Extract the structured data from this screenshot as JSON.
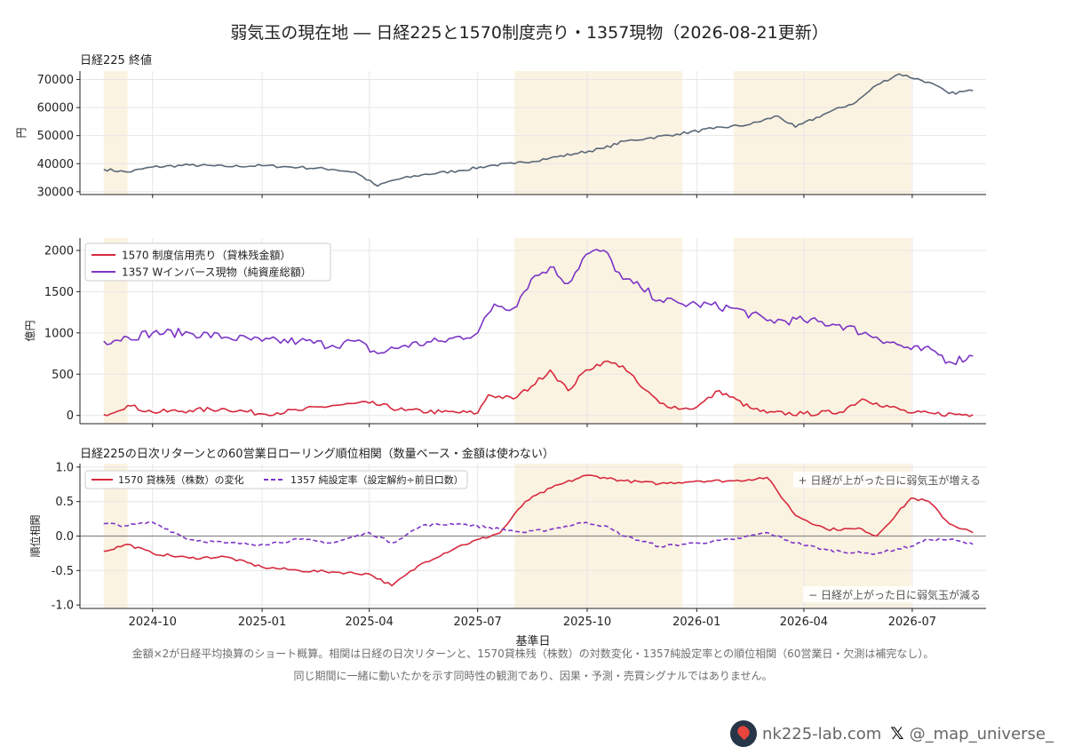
{
  "title": "弱気玉の現在地 ― 日経225と1570制度売り・1357現物（2026-08-21更新）",
  "notes": [
    "金額×2が日経平均換算のショート概算。相関は日経の日次リターンと、1570貸株残（株数）の対数変化・1357純設定率との順位相関（60営業日・欠測は補完なし）。",
    "同じ期間に一緒に動いたかを示す同時性の観測であり、因果・予測・売買シグナルではありません。"
  ],
  "brand": {
    "site": "nk225-lab.com",
    "handle": "@_map_universe_",
    "x_icon": "x-logo-icon",
    "logo_icon": "map-pin-logo-icon"
  },
  "colors": {
    "nikkei": "#5a6878",
    "short1570": "#d62a3e",
    "phys1357": "#7b34c6",
    "shade": "#fbf3e1"
  },
  "chart_data": [
    {
      "type": "line",
      "subtitle": "日経225 終値",
      "ylabel": "円",
      "ylim": [
        29000,
        73000
      ],
      "yticks": [
        30000,
        40000,
        50000,
        60000,
        70000
      ],
      "x_range": [
        "2024-08-01",
        "2026-09-01"
      ],
      "shaded_periods": [
        [
          "2024-08-21",
          "2024-09-10"
        ],
        [
          "2025-08-01",
          "2025-12-20"
        ],
        [
          "2026-02-01",
          "2026-06-30"
        ]
      ],
      "series": [
        {
          "name": "",
          "color": "#5a6878",
          "x": [
            "2024-08-21",
            "2024-09-10",
            "2024-10-01",
            "2024-11-01",
            "2024-12-01",
            "2025-01-01",
            "2025-02-01",
            "2025-03-01",
            "2025-03-20",
            "2025-04-08",
            "2025-04-20",
            "2025-05-15",
            "2025-06-15",
            "2025-07-15",
            "2025-08-01",
            "2025-08-31",
            "2025-09-20",
            "2025-10-15",
            "2025-11-01",
            "2025-11-20",
            "2025-12-15",
            "2026-01-15",
            "2026-02-15",
            "2026-03-10",
            "2026-03-25",
            "2026-04-20",
            "2026-05-15",
            "2026-06-01",
            "2026-06-20",
            "2026-07-15",
            "2026-08-01",
            "2026-08-21"
          ],
          "values": [
            38000,
            37000,
            38800,
            39500,
            39000,
            39300,
            38700,
            38000,
            37000,
            32000,
            34000,
            36000,
            37500,
            39500,
            40000,
            42000,
            43500,
            45500,
            48000,
            49000,
            50500,
            52500,
            54000,
            57000,
            53000,
            58000,
            62000,
            68000,
            72000,
            69000,
            65000,
            66000
          ]
        }
      ],
      "xticks": [
        "2024-10",
        "2025-01",
        "2025-04",
        "2025-07",
        "2025-10",
        "2026-01",
        "2026-04",
        "2026-07"
      ]
    },
    {
      "type": "line",
      "ylabel": "億円",
      "ylim": [
        -100,
        2150
      ],
      "yticks": [
        0,
        500,
        1000,
        1500,
        2000
      ],
      "legend_position": "upper-left",
      "series": [
        {
          "name": "1570 制度信用売り（貸株残金額）",
          "color": "#d62a3e",
          "x": [
            "2024-08-21",
            "2024-09-10",
            "2024-10-01",
            "2024-11-01",
            "2024-12-01",
            "2025-01-01",
            "2025-02-01",
            "2025-03-01",
            "2025-04-01",
            "2025-05-01",
            "2025-06-01",
            "2025-07-01",
            "2025-07-10",
            "2025-07-31",
            "2025-08-15",
            "2025-08-31",
            "2025-09-15",
            "2025-09-30",
            "2025-10-15",
            "2025-10-31",
            "2025-11-15",
            "2025-12-01",
            "2025-12-20",
            "2026-01-01",
            "2026-01-20",
            "2026-02-15",
            "2026-03-01",
            "2026-04-01",
            "2026-05-01",
            "2026-05-20",
            "2026-06-01",
            "2026-06-30",
            "2026-07-20",
            "2026-08-21"
          ],
          "values": [
            10,
            120,
            40,
            60,
            80,
            20,
            60,
            120,
            150,
            60,
            40,
            30,
            250,
            200,
            350,
            550,
            300,
            550,
            650,
            600,
            350,
            150,
            80,
            100,
            300,
            90,
            30,
            20,
            40,
            200,
            150,
            30,
            20,
            10
          ]
        },
        {
          "name": "1357 Wインバース現物（純資産総額）",
          "color": "#7b34c6",
          "x": [
            "2024-08-21",
            "2024-09-10",
            "2024-10-01",
            "2024-11-01",
            "2024-12-01",
            "2025-01-01",
            "2025-02-01",
            "2025-03-01",
            "2025-03-20",
            "2025-04-08",
            "2025-05-01",
            "2025-06-01",
            "2025-07-01",
            "2025-07-15",
            "2025-07-31",
            "2025-08-15",
            "2025-08-31",
            "2025-09-15",
            "2025-09-30",
            "2025-10-15",
            "2025-10-31",
            "2025-11-15",
            "2025-12-01",
            "2025-12-20",
            "2026-01-01",
            "2026-02-01",
            "2026-03-01",
            "2026-04-01",
            "2026-05-01",
            "2026-06-01",
            "2026-06-30",
            "2026-07-20",
            "2026-08-01",
            "2026-08-21"
          ],
          "values": [
            900,
            950,
            1000,
            1000,
            950,
            900,
            900,
            850,
            900,
            750,
            850,
            900,
            1000,
            1350,
            1300,
            1650,
            1800,
            1600,
            1950,
            2000,
            1650,
            1550,
            1400,
            1350,
            1350,
            1300,
            1150,
            1150,
            1100,
            950,
            800,
            780,
            650,
            720
          ]
        }
      ]
    },
    {
      "type": "line",
      "subtitle": "日経225の日次リターンとの60営業日ローリング順位相関（数量ベース・金額は使わない）",
      "ylabel": "順位相関",
      "xlabel": "基準日",
      "ylim": [
        -1.05,
        1.05
      ],
      "yticks": [
        -1.0,
        -0.5,
        0.0,
        0.5,
        1.0
      ],
      "zero_line": true,
      "annotations": [
        "+ 日経が上がった日に弱気玉が増える",
        "− 日経が上がった日に弱気玉が減る"
      ],
      "legend_position": "upper-left",
      "series": [
        {
          "name": "1570 貸株残（株数）の変化",
          "color": "#d62a3e",
          "dash": "solid",
          "x": [
            "2024-08-21",
            "2024-09-10",
            "2024-10-01",
            "2024-11-01",
            "2024-12-01",
            "2025-01-01",
            "2025-02-01",
            "2025-03-01",
            "2025-04-01",
            "2025-04-20",
            "2025-05-15",
            "2025-06-15",
            "2025-07-20",
            "2025-08-10",
            "2025-09-01",
            "2025-09-30",
            "2025-10-15",
            "2025-11-01",
            "2025-12-01",
            "2026-01-01",
            "2026-02-01",
            "2026-03-01",
            "2026-03-25",
            "2026-04-20",
            "2026-05-20",
            "2026-06-01",
            "2026-06-30",
            "2026-07-15",
            "2026-08-01",
            "2026-08-21"
          ],
          "values": [
            -0.22,
            -0.12,
            -0.25,
            -0.32,
            -0.3,
            -0.45,
            -0.5,
            -0.52,
            -0.55,
            -0.72,
            -0.4,
            -0.15,
            0.05,
            0.5,
            0.7,
            0.88,
            0.85,
            0.8,
            0.76,
            0.8,
            0.8,
            0.85,
            0.3,
            0.1,
            0.1,
            0.0,
            0.55,
            0.5,
            0.18,
            0.05
          ]
        },
        {
          "name": "1357 純設定率（設定解約÷前日口数）",
          "color": "#7b34c6",
          "dash": "dashed",
          "x": [
            "2024-08-21",
            "2024-09-10",
            "2024-10-01",
            "2024-11-01",
            "2024-12-01",
            "2025-01-01",
            "2025-02-01",
            "2025-03-01",
            "2025-04-01",
            "2025-04-20",
            "2025-05-15",
            "2025-06-15",
            "2025-07-20",
            "2025-08-10",
            "2025-09-01",
            "2025-09-30",
            "2025-10-15",
            "2025-11-01",
            "2025-12-01",
            "2026-01-01",
            "2026-02-01",
            "2026-03-01",
            "2026-03-25",
            "2026-04-20",
            "2026-05-20",
            "2026-06-01",
            "2026-06-30",
            "2026-07-15",
            "2026-08-01",
            "2026-08-21"
          ],
          "values": [
            0.18,
            0.15,
            0.2,
            -0.05,
            -0.1,
            -0.12,
            -0.05,
            -0.1,
            0.05,
            -0.1,
            0.15,
            0.18,
            0.1,
            0.05,
            0.1,
            0.2,
            0.15,
            0.0,
            -0.15,
            -0.1,
            -0.05,
            0.05,
            -0.1,
            -0.2,
            -0.25,
            -0.25,
            -0.15,
            -0.05,
            -0.05,
            -0.12
          ]
        }
      ]
    }
  ]
}
